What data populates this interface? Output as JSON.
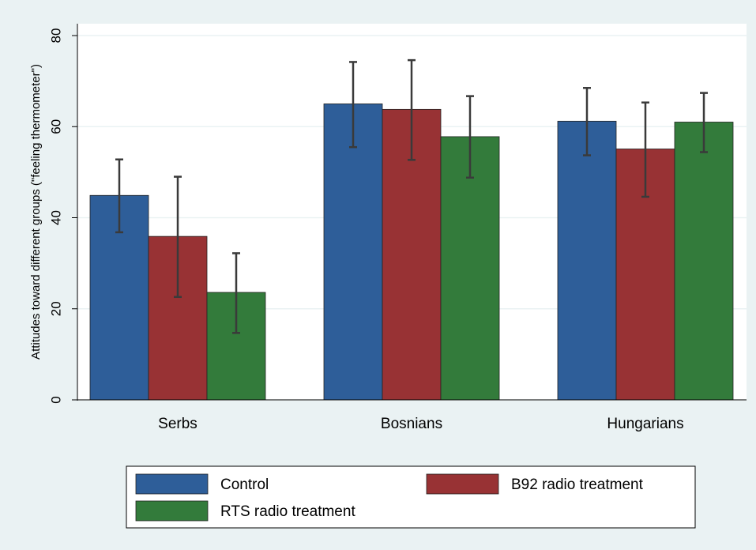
{
  "chart_data": {
    "type": "bar",
    "y_label": "Attitudes toward different groups (\"feeling thermometer\")",
    "categories": [
      "Serbs",
      "Bosnians",
      "Hungarians"
    ],
    "series": [
      {
        "name": "Control",
        "color": "#2e5e99",
        "values": [
          44.9,
          65.0,
          61.2
        ],
        "ci_low": [
          36.8,
          55.5,
          53.7
        ],
        "ci_high": [
          52.8,
          74.2,
          68.5
        ]
      },
      {
        "name": "B92 radio treatment",
        "color": "#983234",
        "values": [
          35.9,
          63.8,
          55.1
        ],
        "ci_low": [
          22.6,
          52.7,
          44.6
        ],
        "ci_high": [
          49.0,
          74.6,
          65.3
        ]
      },
      {
        "name": "RTS radio treatment",
        "color": "#337b3b",
        "values": [
          23.6,
          57.8,
          61.0
        ],
        "ci_low": [
          14.7,
          48.8,
          54.4
        ],
        "ci_high": [
          32.2,
          66.7,
          67.4
        ]
      }
    ],
    "ylim": [
      0,
      80
    ],
    "yticks": [
      0,
      20,
      40,
      60,
      80
    ],
    "grid": true
  }
}
